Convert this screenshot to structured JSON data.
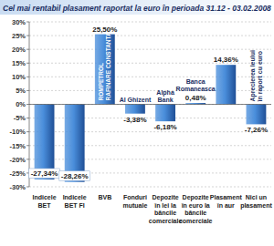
{
  "chart_data": {
    "type": "bar",
    "title": "Cel mai rentabil plasament raportat la euro în perioada 31.12 - 03.02.2008",
    "categories": [
      "Indicele BET",
      "Indicele BET FI",
      "BVB",
      "Fonduri mutuale",
      "Depozite în lei la băncile comerciale",
      "Depozite în euro la băncile comerciale",
      "Plasament în aur",
      "Nici un plasament"
    ],
    "values": [
      -27.34,
      -28.26,
      25.5,
      -3.38,
      -6.18,
      0.48,
      14.36,
      -7.26
    ],
    "value_labels": [
      "-27,34%",
      "-28,26%",
      "25,50%",
      "-3,38%",
      "-6,18%",
      "0,48%",
      "14,36%",
      "-7,26%"
    ],
    "annotations": [
      null,
      null,
      "ROMPETROL RAFINARE CONSTANTA",
      "Al Ghizent",
      "Alpha Bank",
      "Banca Romaneasca",
      null,
      "Aprecierea leului în raport cu euro"
    ],
    "color": "#4a8edb",
    "ylim": [
      -30,
      30
    ],
    "yticks": [
      {
        "value": -30,
        "label": "-30%"
      },
      {
        "value": -25,
        "label": "-25%"
      },
      {
        "value": -20,
        "label": "-20%"
      },
      {
        "value": -15,
        "label": "-15%"
      },
      {
        "value": -10,
        "label": "-10%"
      },
      {
        "value": -5,
        "label": "-5%"
      },
      {
        "value": 0,
        "label": "0%"
      },
      {
        "value": 5,
        "label": "5%"
      },
      {
        "value": 10,
        "label": "10%"
      },
      {
        "value": 15,
        "label": "15%"
      },
      {
        "value": 20,
        "label": "20%"
      },
      {
        "value": 25,
        "label": "25%"
      },
      {
        "value": 30,
        "label": "30%"
      }
    ],
    "grid": true,
    "data_labels": true
  }
}
